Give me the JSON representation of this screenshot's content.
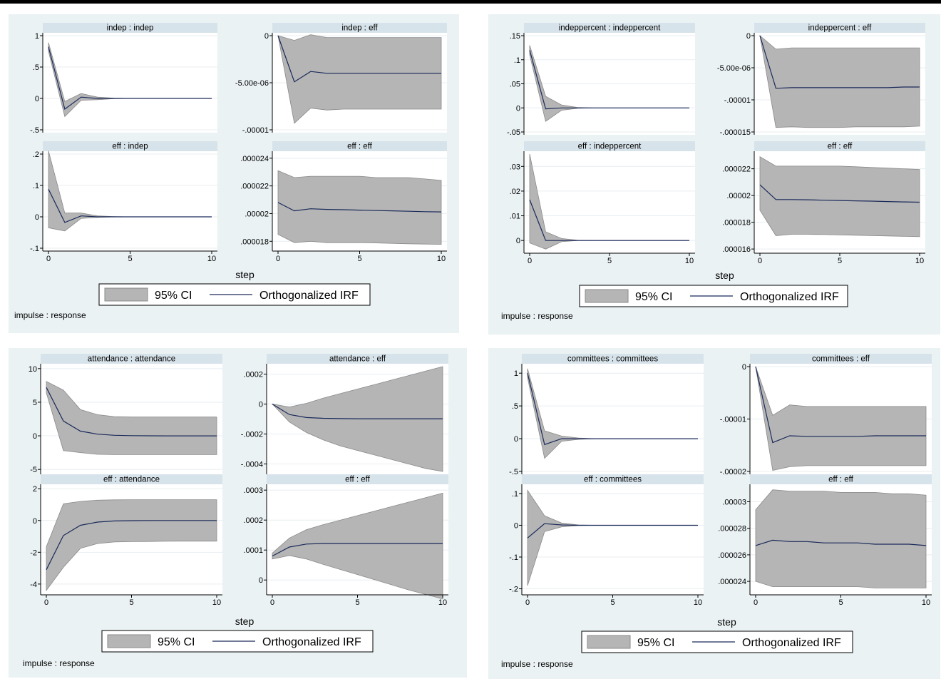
{
  "legend": {
    "ci_label": "95% CI",
    "irf_label": "Orthogonalized IRF"
  },
  "x_title": "step",
  "note": "impulse : response",
  "colors": {
    "panel_bg": "#eaf2f3",
    "strip_bg": "#d7e3ea",
    "band": "#b5b5b5",
    "irf_line": "#1a2a5a"
  },
  "chart_data": [
    {
      "type": "area",
      "x": [
        0,
        1,
        2,
        3,
        4,
        5,
        6,
        7,
        8,
        9,
        10
      ],
      "subplots": [
        {
          "title": "indep : indep",
          "ylim": [
            -0.5,
            1
          ],
          "yticks": [
            1,
            0.5,
            0,
            -0.5
          ],
          "ytick_labels": [
            "1",
            ".5",
            "0",
            "-.5"
          ],
          "irf": [
            0.82,
            -0.17,
            0.02,
            0.0,
            0,
            0,
            0,
            0,
            0,
            0,
            0
          ],
          "lower": [
            0.75,
            -0.29,
            -0.03,
            -0.02,
            -0.005,
            0,
            0,
            0,
            0,
            0,
            0
          ],
          "upper": [
            0.89,
            -0.05,
            0.08,
            0.02,
            0.005,
            0,
            0,
            0,
            0,
            0,
            0
          ]
        },
        {
          "title": "indep : eff",
          "ylim": [
            -1e-05,
            0
          ],
          "yticks": [
            0,
            -5e-06,
            -1e-05
          ],
          "ytick_labels": [
            "0",
            "-5.00e-06",
            "-.00001"
          ],
          "irf": [
            0,
            -4.9e-06,
            -3.8e-06,
            -4e-06,
            -4e-06,
            -4e-06,
            -4e-06,
            -4e-06,
            -4e-06,
            -4e-06,
            -4e-06
          ],
          "lower": [
            0,
            -9.3e-06,
            -7.7e-06,
            -7.9e-06,
            -7.8e-06,
            -7.8e-06,
            -7.8e-06,
            -7.8e-06,
            -7.8e-06,
            -7.8e-06,
            -7.8e-06
          ],
          "upper": [
            0,
            -5e-07,
            1e-07,
            -2e-07,
            -2e-07,
            -2e-07,
            -2e-07,
            -2e-07,
            -2e-07,
            -2e-07,
            -2e-07
          ]
        },
        {
          "title": "eff : indep",
          "ylim": [
            -0.1,
            0.2
          ],
          "yticks": [
            0.2,
            0.1,
            0,
            -0.1
          ],
          "ytick_labels": [
            ".2",
            ".1",
            "0",
            "-.1"
          ],
          "irf": [
            0.088,
            -0.018,
            0.003,
            0.0,
            0,
            0,
            0,
            0,
            0,
            0,
            0
          ],
          "lower": [
            -0.035,
            -0.045,
            -0.005,
            -0.002,
            0,
            0,
            0,
            0,
            0,
            0,
            0
          ],
          "upper": [
            0.21,
            0.012,
            0.012,
            0.003,
            0.001,
            0,
            0,
            0,
            0,
            0,
            0
          ]
        },
        {
          "title": "eff : eff",
          "ylim": [
            1.75e-05,
            2.43e-05
          ],
          "yticks": [
            2.4e-05,
            2.2e-05,
            2e-05,
            1.8e-05
          ],
          "ytick_labels": [
            ".000024",
            ".000022",
            ".00002",
            ".000018"
          ],
          "irf": [
            2.08e-05,
            2.02e-05,
            2.035e-05,
            2.03e-05,
            2.028e-05,
            2.025e-05,
            2.022e-05,
            2.02e-05,
            2.017e-05,
            2.014e-05,
            2.012e-05
          ],
          "lower": [
            1.85e-05,
            1.79e-05,
            1.8e-05,
            1.79e-05,
            1.79e-05,
            1.79e-05,
            1.788e-05,
            1.785e-05,
            1.782e-05,
            1.78e-05,
            1.778e-05
          ],
          "upper": [
            2.31e-05,
            2.26e-05,
            2.27e-05,
            2.27e-05,
            2.27e-05,
            2.27e-05,
            2.26e-05,
            2.26e-05,
            2.26e-05,
            2.25e-05,
            2.24e-05
          ]
        }
      ]
    },
    {
      "type": "area",
      "x": [
        0,
        1,
        2,
        3,
        4,
        5,
        6,
        7,
        8,
        9,
        10
      ],
      "subplots": [
        {
          "title": "indeppercent : indeppercent",
          "ylim": [
            -0.05,
            0.15
          ],
          "yticks": [
            0.15,
            0.1,
            0.05,
            0,
            -0.05
          ],
          "ytick_labels": [
            ".15",
            ".1",
            ".05",
            "0",
            "-.05"
          ],
          "irf": [
            0.12,
            -0.002,
            0.0,
            0,
            0,
            0,
            0,
            0,
            0,
            0,
            0
          ],
          "lower": [
            0.11,
            -0.028,
            -0.005,
            -0.001,
            0,
            0,
            0,
            0,
            0,
            0,
            0
          ],
          "upper": [
            0.13,
            0.024,
            0.006,
            0.001,
            0,
            0,
            0,
            0,
            0,
            0,
            0
          ]
        },
        {
          "title": "indeppercent : eff",
          "ylim": [
            -1.5e-05,
            0
          ],
          "yticks": [
            0,
            -5e-06,
            -1e-05,
            -1.5e-05
          ],
          "ytick_labels": [
            "0",
            "-5.00e-06",
            "-.00001",
            "-.000015"
          ],
          "irf": [
            0,
            -8.2e-06,
            -8.1e-06,
            -8.1e-06,
            -8.1e-06,
            -8.1e-06,
            -8.1e-06,
            -8.1e-06,
            -8.1e-06,
            -8e-06,
            -8e-06
          ],
          "lower": [
            0,
            -1.43e-05,
            -1.42e-05,
            -1.43e-05,
            -1.43e-05,
            -1.43e-05,
            -1.42e-05,
            -1.42e-05,
            -1.42e-05,
            -1.42e-05,
            -1.41e-05
          ],
          "upper": [
            0,
            -2.1e-06,
            -1.9e-06,
            -1.9e-06,
            -1.9e-06,
            -1.9e-06,
            -1.9e-06,
            -1.9e-06,
            -1.9e-06,
            -1.9e-06,
            -1.9e-06
          ]
        },
        {
          "title": "eff : indeppercent",
          "ylim": [
            -0.004,
            0.035
          ],
          "yticks": [
            0.03,
            0.02,
            0.01,
            0
          ],
          "ytick_labels": [
            ".03",
            ".02",
            ".01",
            "0"
          ],
          "irf": [
            0.0165,
            0.0,
            0.0,
            0,
            0,
            0,
            0,
            0,
            0,
            0,
            0
          ],
          "lower": [
            -0.001,
            -0.0035,
            -0.0005,
            0,
            0,
            0,
            0,
            0,
            0,
            0,
            0
          ],
          "upper": [
            0.035,
            0.0035,
            0.0008,
            0.0001,
            0,
            0,
            0,
            0,
            0,
            0,
            0
          ]
        },
        {
          "title": "eff : eff",
          "ylim": [
            1.59e-05,
            2.31e-05
          ],
          "yticks": [
            2.2e-05,
            2e-05,
            1.8e-05,
            1.6e-05
          ],
          "ytick_labels": [
            ".000022",
            ".00002",
            ".000018",
            ".000016"
          ],
          "irf": [
            2.08e-05,
            1.97e-05,
            1.97e-05,
            1.968e-05,
            1.965e-05,
            1.963e-05,
            1.96e-05,
            1.958e-05,
            1.955e-05,
            1.952e-05,
            1.95e-05
          ],
          "lower": [
            1.89e-05,
            1.7e-05,
            1.71e-05,
            1.71e-05,
            1.708e-05,
            1.705e-05,
            1.703e-05,
            1.7e-05,
            1.698e-05,
            1.695e-05,
            1.692e-05
          ],
          "upper": [
            2.29e-05,
            2.22e-05,
            2.22e-05,
            2.22e-05,
            2.22e-05,
            2.22e-05,
            2.215e-05,
            2.21e-05,
            2.205e-05,
            2.2e-05,
            2.195e-05
          ]
        }
      ]
    },
    {
      "type": "area",
      "x": [
        0,
        1,
        2,
        3,
        4,
        5,
        6,
        7,
        8,
        9,
        10
      ],
      "subplots": [
        {
          "title": "attendance : attendance",
          "ylim": [
            -5.3,
            10.3
          ],
          "yticks": [
            10,
            5,
            0,
            -5
          ],
          "ytick_labels": [
            "10",
            "5",
            "0",
            "-5"
          ],
          "irf": [
            7.2,
            2.2,
            0.7,
            0.25,
            0.08,
            0.03,
            0.01,
            0,
            0,
            0,
            0
          ],
          "lower": [
            6.4,
            -2.2,
            -2.5,
            -2.75,
            -2.8,
            -2.8,
            -2.8,
            -2.8,
            -2.8,
            -2.8,
            -2.8
          ],
          "upper": [
            8.1,
            6.8,
            3.9,
            3.15,
            2.85,
            2.8,
            2.8,
            2.8,
            2.8,
            2.8,
            2.8
          ]
        },
        {
          "title": "attendance : eff",
          "ylim": [
            -0.00045,
            0.00025
          ],
          "yticks": [
            0.0002,
            0,
            -0.0002,
            -0.0004
          ],
          "ytick_labels": [
            ".0002",
            "0",
            "-.0002",
            "-.0004"
          ],
          "irf": [
            0,
            -7e-05,
            -9e-05,
            -9.5e-05,
            -9.7e-05,
            -9.8e-05,
            -9.8e-05,
            -9.8e-05,
            -9.8e-05,
            -9.8e-05,
            -9.8e-05
          ],
          "lower": [
            0,
            -0.00012,
            -0.00019,
            -0.00024,
            -0.00028,
            -0.00031,
            -0.00034,
            -0.00037,
            -0.0004,
            -0.00043,
            -0.00045
          ],
          "upper": [
            0,
            -2e-05,
            5e-06,
            4e-05,
            7e-05,
            0.0001,
            0.00013,
            0.00016,
            0.00019,
            0.00022,
            0.00025
          ]
        },
        {
          "title": "eff : attendance",
          "ylim": [
            -4.5,
            2.1
          ],
          "yticks": [
            2,
            0,
            -2,
            -4
          ],
          "ytick_labels": [
            "2",
            "0",
            "-2",
            "-4"
          ],
          "irf": [
            -3.1,
            -0.95,
            -0.3,
            -0.1,
            -0.03,
            -0.01,
            0,
            0,
            0,
            0,
            0
          ],
          "lower": [
            -4.4,
            -2.95,
            -1.75,
            -1.45,
            -1.35,
            -1.33,
            -1.32,
            -1.31,
            -1.3,
            -1.3,
            -1.3
          ],
          "upper": [
            -1.65,
            1.05,
            1.2,
            1.28,
            1.3,
            1.31,
            1.31,
            1.31,
            1.31,
            1.31,
            1.31
          ]
        },
        {
          "title": "eff : eff",
          "ylim": [
            -4e-05,
            0.00031
          ],
          "yticks": [
            0.0003,
            0.0002,
            0.0001,
            0
          ],
          "ytick_labels": [
            ".0003",
            ".0002",
            ".0001",
            "0"
          ],
          "irf": [
            8e-05,
            0.00011,
            0.00012,
            0.000122,
            0.000122,
            0.000122,
            0.000122,
            0.000122,
            0.000122,
            0.000122,
            0.000122
          ],
          "lower": [
            7e-05,
            8.2e-05,
            7e-05,
            5.2e-05,
            3.5e-05,
            1.8e-05,
            1e-06,
            -1.6e-05,
            -3.3e-05,
            -4.8e-05,
            -6.3e-05
          ],
          "upper": [
            9e-05,
            0.00014,
            0.000168,
            0.000185,
            0.0002,
            0.000215,
            0.00023,
            0.000245,
            0.00026,
            0.000275,
            0.00029
          ]
        }
      ]
    },
    {
      "type": "area",
      "x": [
        0,
        1,
        2,
        3,
        4,
        5,
        6,
        7,
        8,
        9,
        10
      ],
      "subplots": [
        {
          "title": "committees : committees",
          "ylim": [
            -0.5,
            1.1
          ],
          "yticks": [
            1,
            0.5,
            0,
            -0.5
          ],
          "ytick_labels": [
            "1",
            ".5",
            "0",
            "-.5"
          ],
          "irf": [
            1.0,
            -0.09,
            0.0,
            0,
            0,
            0,
            0,
            0,
            0,
            0,
            0
          ],
          "lower": [
            0.93,
            -0.3,
            -0.04,
            -0.01,
            0,
            0,
            0,
            0,
            0,
            0,
            0
          ],
          "upper": [
            1.07,
            0.12,
            0.04,
            0.01,
            0,
            0,
            0,
            0,
            0,
            0,
            0
          ]
        },
        {
          "title": "committees : eff",
          "ylim": [
            -2e-05,
            0
          ],
          "yticks": [
            0,
            -1e-05,
            -2e-05
          ],
          "ytick_labels": [
            "0",
            "-.00001",
            "-.00002"
          ],
          "irf": [
            0,
            -1.45e-05,
            -1.32e-05,
            -1.33e-05,
            -1.33e-05,
            -1.33e-05,
            -1.33e-05,
            -1.32e-05,
            -1.32e-05,
            -1.32e-05,
            -1.32e-05
          ],
          "lower": [
            0,
            -1.98e-05,
            -1.91e-05,
            -1.89e-05,
            -1.89e-05,
            -1.89e-05,
            -1.89e-05,
            -1.89e-05,
            -1.89e-05,
            -1.89e-05,
            -1.89e-05
          ],
          "upper": [
            0,
            -9.3e-06,
            -7.3e-06,
            -7.6e-06,
            -7.6e-06,
            -7.6e-06,
            -7.6e-06,
            -7.6e-06,
            -7.6e-06,
            -7.6e-06,
            -7.6e-06
          ]
        },
        {
          "title": "eff : committees",
          "ylim": [
            -0.21,
            0.12
          ],
          "yticks": [
            0.1,
            0,
            -0.1,
            -0.2
          ],
          "ytick_labels": [
            ".1",
            "0",
            "-.1",
            "-.2"
          ],
          "irf": [
            -0.04,
            0.005,
            0.001,
            0,
            0,
            0,
            0,
            0,
            0,
            0,
            0
          ],
          "lower": [
            -0.19,
            -0.02,
            -0.005,
            -0.001,
            0,
            0,
            0,
            0,
            0,
            0,
            0
          ],
          "upper": [
            0.11,
            0.03,
            0.007,
            0.001,
            0,
            0,
            0,
            0,
            0,
            0,
            0
          ]
        },
        {
          "title": "eff : eff",
          "ylim": [
            2.32e-05,
            3.11e-05
          ],
          "yticks": [
            3e-05,
            2.8e-05,
            2.6e-05,
            2.4e-05
          ],
          "ytick_labels": [
            ".00003",
            ".000028",
            ".000026",
            ".000024"
          ],
          "irf": [
            2.67e-05,
            2.71e-05,
            2.7e-05,
            2.7e-05,
            2.69e-05,
            2.69e-05,
            2.69e-05,
            2.68e-05,
            2.68e-05,
            2.68e-05,
            2.67e-05
          ],
          "lower": [
            2.4e-05,
            2.36e-05,
            2.36e-05,
            2.36e-05,
            2.36e-05,
            2.36e-05,
            2.36e-05,
            2.35e-05,
            2.35e-05,
            2.35e-05,
            2.35e-05
          ],
          "upper": [
            2.94e-05,
            3.09e-05,
            3.08e-05,
            3.08e-05,
            3.08e-05,
            3.07e-05,
            3.07e-05,
            3.07e-05,
            3.06e-05,
            3.06e-05,
            3.05e-05
          ]
        }
      ]
    }
  ]
}
